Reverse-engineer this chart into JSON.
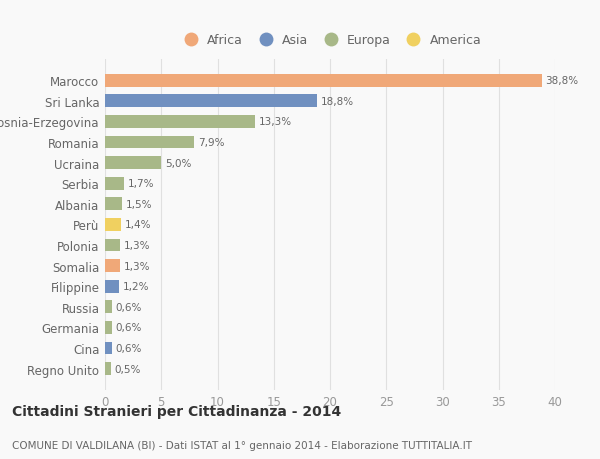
{
  "countries": [
    "Marocco",
    "Sri Lanka",
    "Bosnia-Erzegovina",
    "Romania",
    "Ucraina",
    "Serbia",
    "Albania",
    "Perù",
    "Polonia",
    "Somalia",
    "Filippine",
    "Russia",
    "Germania",
    "Cina",
    "Regno Unito"
  ],
  "values": [
    38.8,
    18.8,
    13.3,
    7.9,
    5.0,
    1.7,
    1.5,
    1.4,
    1.3,
    1.3,
    1.2,
    0.6,
    0.6,
    0.6,
    0.5
  ],
  "labels": [
    "38,8%",
    "18,8%",
    "13,3%",
    "7,9%",
    "5,0%",
    "1,7%",
    "1,5%",
    "1,4%",
    "1,3%",
    "1,3%",
    "1,2%",
    "0,6%",
    "0,6%",
    "0,6%",
    "0,5%"
  ],
  "bar_colors": [
    "#F0A878",
    "#7090C0",
    "#A8B888",
    "#A8B888",
    "#A8B888",
    "#A8B888",
    "#A8B888",
    "#F0D060",
    "#A8B888",
    "#F0A878",
    "#7090C0",
    "#A8B888",
    "#A8B888",
    "#7090C0",
    "#A8B888"
  ],
  "legend_order": [
    "Africa",
    "Asia",
    "Europa",
    "America"
  ],
  "legend_colors": [
    "#F0A878",
    "#7090C0",
    "#A8B888",
    "#F0D060"
  ],
  "title": "Cittadini Stranieri per Cittadinanza - 2014",
  "subtitle": "COMUNE DI VALDILANA (BI) - Dati ISTAT al 1° gennaio 2014 - Elaborazione TUTTITALIA.IT",
  "xlim": [
    0,
    40
  ],
  "xticks": [
    0,
    5,
    10,
    15,
    20,
    25,
    30,
    35,
    40
  ],
  "background_color": "#f9f9f9",
  "grid_color": "#e0e0e0"
}
